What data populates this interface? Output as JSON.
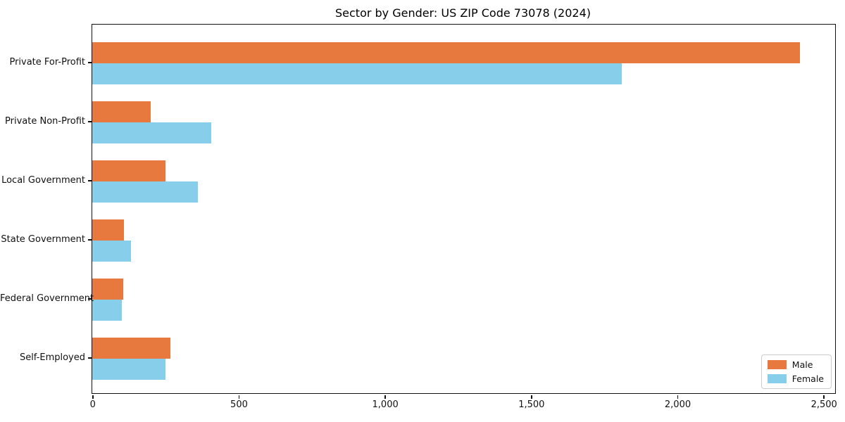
{
  "chart_data": {
    "type": "bar",
    "orientation": "horizontal",
    "title": "Sector by Gender: US ZIP Code 73078 (2024)",
    "categories": [
      "Private For-Profit",
      "Private Non-Profit",
      "Local Government",
      "State Government",
      "Federal Government",
      "Self-Employed"
    ],
    "series": [
      {
        "name": "Male",
        "color": "#e8793e",
        "values": [
          2420,
          200,
          250,
          108,
          105,
          268
        ]
      },
      {
        "name": "Female",
        "color": "#87ceeb",
        "values": [
          1810,
          408,
          360,
          132,
          100,
          250
        ]
      }
    ],
    "xlabel": "",
    "ylabel": "",
    "xlim": [
      0,
      2540
    ],
    "xticks": [
      0,
      500,
      1000,
      1500,
      2000,
      2500
    ],
    "xtick_labels": [
      "0",
      "500",
      "1,000",
      "1,500",
      "2,000",
      "2,500"
    ],
    "legend_position": "lower right",
    "grid": false,
    "background_color": "#ffffff",
    "text_color": "#111111"
  }
}
